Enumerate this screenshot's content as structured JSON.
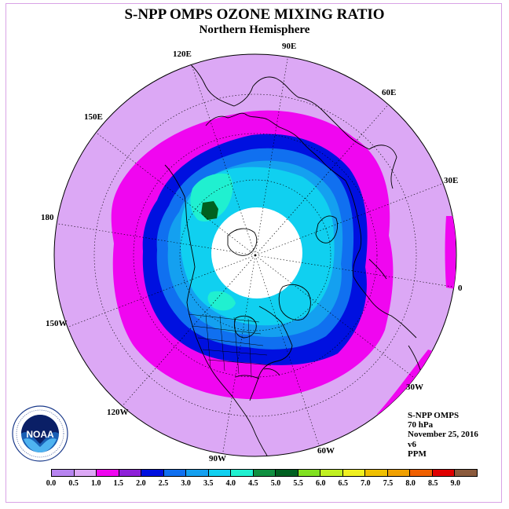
{
  "title": "S-NPP OMPS OZONE MIXING RATIO",
  "subtitle": "Northern Hemisphere",
  "longitude_labels": [
    "90E",
    "60E",
    "30E",
    "0",
    "30W",
    "60W",
    "90W",
    "120W",
    "150W",
    "180",
    "150E",
    "120E"
  ],
  "info": {
    "instrument": "S-NPP OMPS",
    "pressure": "70 hPa",
    "date": "November 25, 2016",
    "version": "v6",
    "units": "PPM"
  },
  "logo": {
    "text": "NOAA",
    "ring_text": "NATIONAL OCEANIC AND ATMOSPHERIC ADMINISTRATION · U.S. DEPARTMENT OF COMMERCE"
  },
  "colorbar": {
    "colors": [
      "#b784f0",
      "#dca8f5",
      "#f006f0",
      "#8e20d8",
      "#0010e0",
      "#1070f0",
      "#14a0f0",
      "#10d0f0",
      "#20f0d0",
      "#109040",
      "#006020",
      "#80e020",
      "#c0f020",
      "#f0f020",
      "#f0c000",
      "#f0a000",
      "#f06000",
      "#e00000",
      "#8b5a3c"
    ],
    "tick_labels": [
      "0.0",
      "0.5",
      "1.0",
      "1.5",
      "2.0",
      "2.5",
      "3.0",
      "3.5",
      "4.0",
      "4.5",
      "5.0",
      "5.5",
      "6.0",
      "6.5",
      "7.0",
      "7.5",
      "8.0",
      "8.5",
      "9.0"
    ]
  },
  "contour_colors": {
    "background": "#dca8f5",
    "band_1_0": "#f006f0",
    "band_1_5": "#0010e0",
    "band_2_0": "#1070f0",
    "band_2_5": "#14a0f0",
    "band_3_0": "#10d0f0",
    "band_3_5": "#20f0d0",
    "max": "#006020",
    "no_data": "#ffffff"
  }
}
